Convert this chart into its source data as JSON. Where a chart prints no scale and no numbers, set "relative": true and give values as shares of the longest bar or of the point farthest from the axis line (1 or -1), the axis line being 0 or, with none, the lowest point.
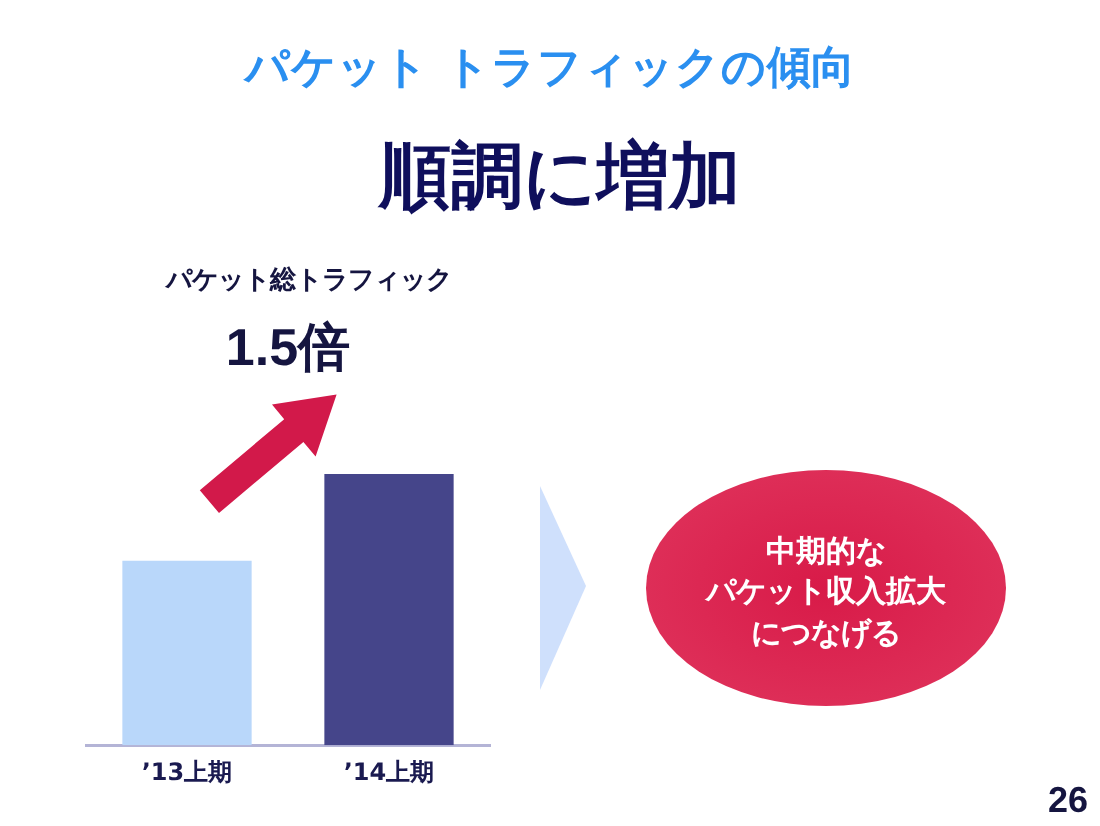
{
  "chart_data": {
    "type": "bar",
    "title": "パケット トラフィックの傾向",
    "subtitle": "順調に増加",
    "categories": [
      "’13上期",
      "’14上期"
    ],
    "values": [
      0.68,
      1
    ],
    "colors": [
      "#b9d7fa",
      "#45458a"
    ],
    "relative": true,
    "annotations": [
      "パケット総トラフィック",
      "1.5倍",
      "中期的なパケット収入拡大につなげる",
      "26"
    ]
  }
}
